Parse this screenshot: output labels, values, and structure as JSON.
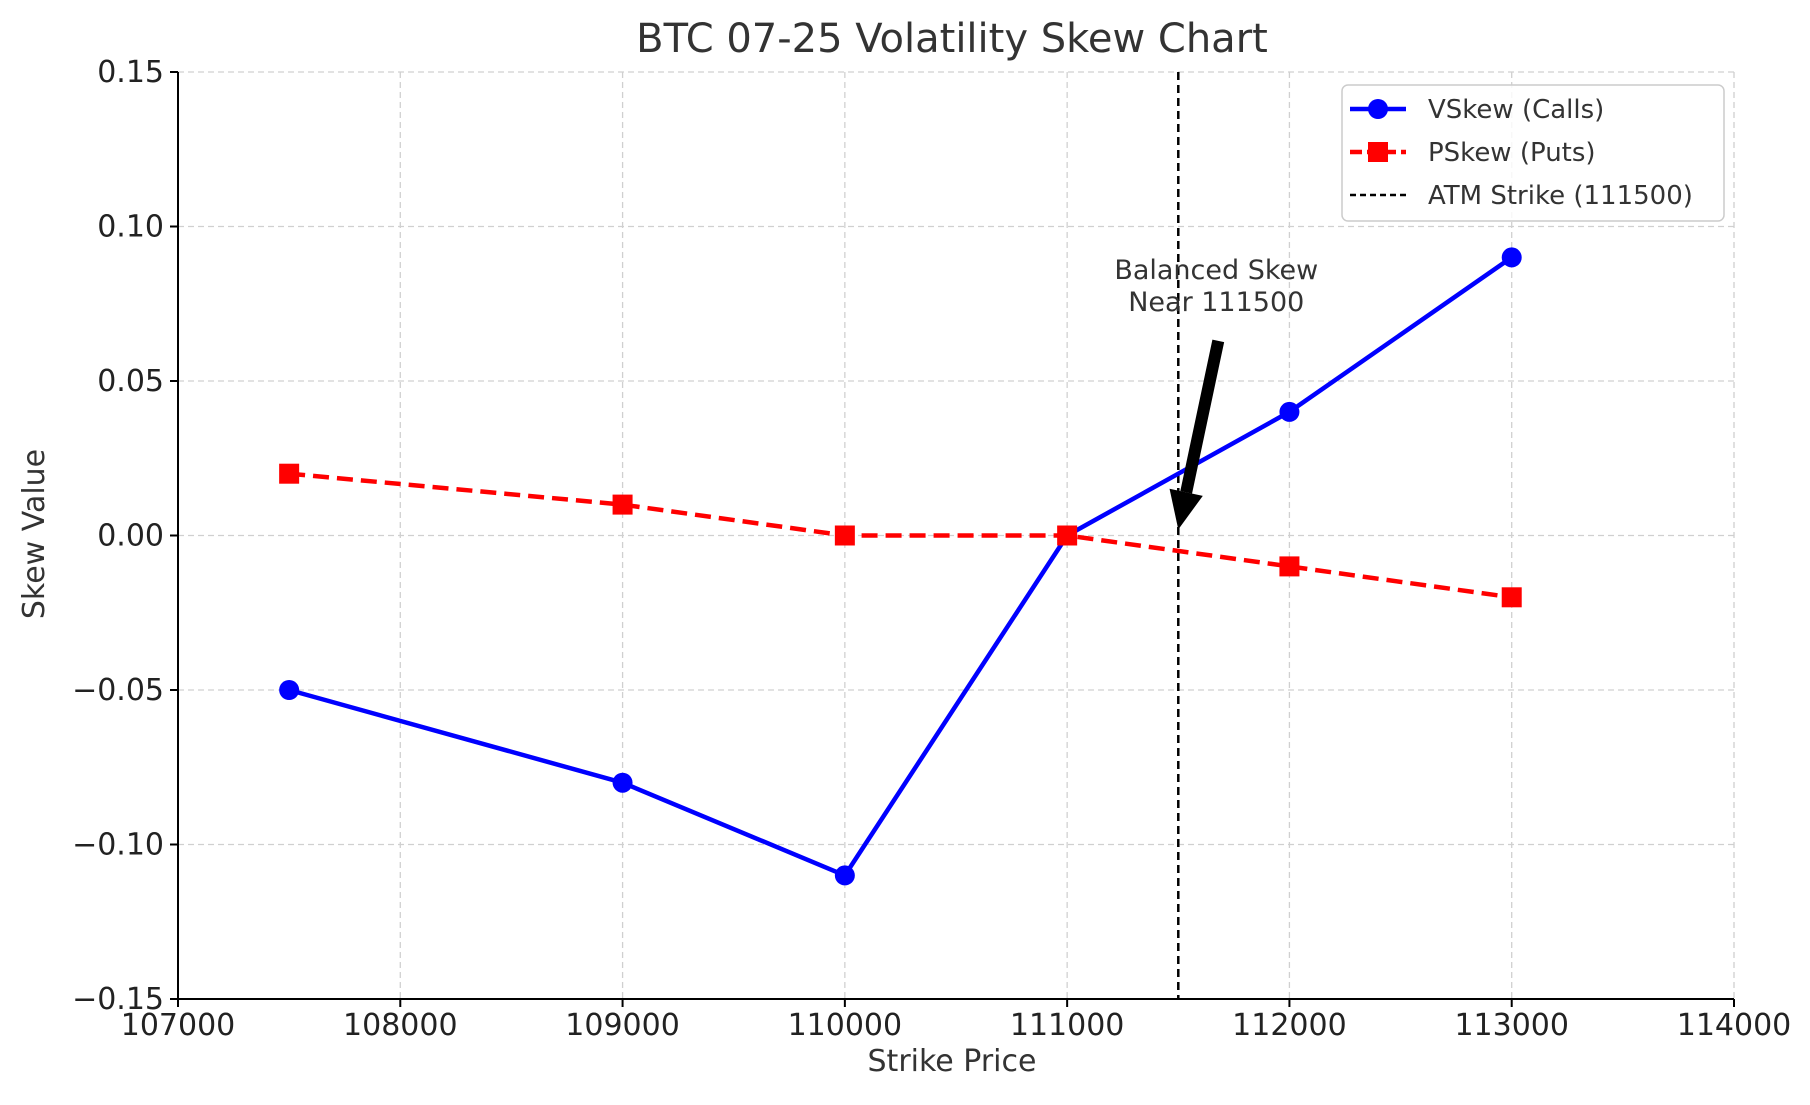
{
  "chart_data": {
    "type": "line",
    "title": "BTC 07-25 Volatility Skew Chart",
    "xlabel": "Strike Price",
    "ylabel": "Skew Value",
    "xlim": [
      107000,
      114000
    ],
    "ylim": [
      -0.15,
      0.15
    ],
    "xticks": [
      107000,
      108000,
      109000,
      110000,
      111000,
      112000,
      113000,
      114000
    ],
    "xtick_labels": [
      "107000",
      "108000",
      "109000",
      "110000",
      "111000",
      "112000",
      "113000",
      "114000"
    ],
    "yticks": [
      -0.15,
      -0.1,
      -0.05,
      0.0,
      0.05,
      0.1,
      0.15
    ],
    "ytick_labels": [
      "−0.15",
      "−0.10",
      "−0.05",
      "0.00",
      "0.05",
      "0.10",
      "0.15"
    ],
    "grid": true,
    "legend_position": "top-right",
    "series": [
      {
        "name": "VSkew (Calls)",
        "color": "#0000ff",
        "marker": "circle",
        "line_style": "solid",
        "x": [
          107500,
          109000,
          110000,
          111000,
          112000,
          113000
        ],
        "y": [
          -0.05,
          -0.08,
          -0.11,
          0.0,
          0.04,
          0.09
        ]
      },
      {
        "name": "PSkew (Puts)",
        "color": "#ff0000",
        "marker": "square",
        "line_style": "dashed",
        "x": [
          107500,
          109000,
          110000,
          111000,
          112000,
          113000
        ],
        "y": [
          0.02,
          0.01,
          0.0,
          0.0,
          -0.01,
          -0.02
        ]
      }
    ],
    "reference_line": {
      "name": "ATM Strike (111500)",
      "x": 111500,
      "color": "#000000",
      "line_style": "dashed"
    },
    "annotation": {
      "text_lines": [
        "Balanced Skew",
        "Near 111500"
      ],
      "target": {
        "x": 111500,
        "y": 0.0
      }
    }
  }
}
